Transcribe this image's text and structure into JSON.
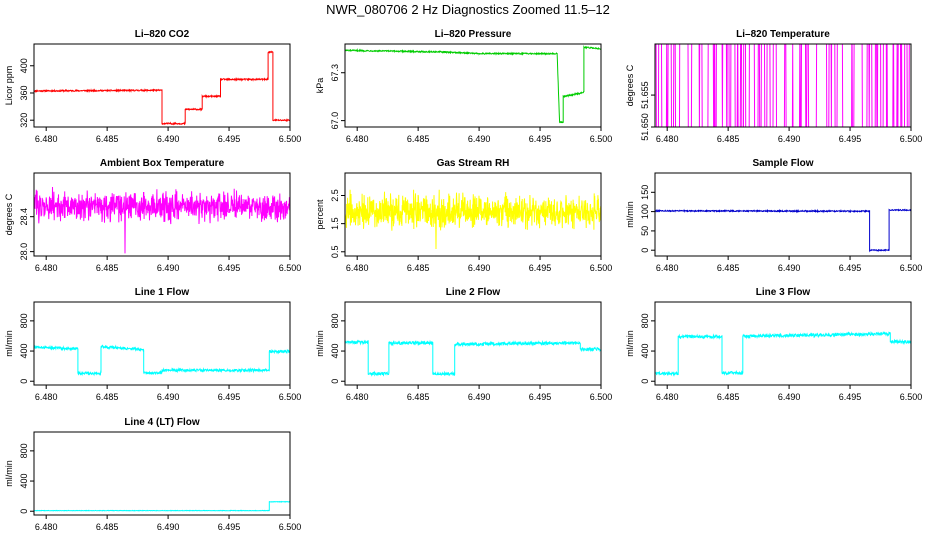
{
  "figure": {
    "title": "NWR_080706  2 Hz Diagnostics Zoomed 11.5–12"
  },
  "chart_data": [
    {
      "type": "line",
      "title": "Li–820 CO2",
      "ylabel": "Licor ppm",
      "color": "#ff0000",
      "xlim": [
        6.479,
        6.5
      ],
      "ylim": [
        310,
        432
      ],
      "xticks": [
        "6.480",
        "6.485",
        "6.490",
        "6.495",
        "6.500"
      ],
      "yticks": [
        "320",
        "360",
        "400"
      ],
      "series": [
        {
          "name": "CO2",
          "x": [
            6.479,
            6.4895,
            6.4895,
            6.4914,
            6.4914,
            6.4928,
            6.4928,
            6.4943,
            6.4943,
            6.4982,
            6.4982,
            6.4986,
            6.4986,
            6.5
          ],
          "y": [
            363,
            364,
            315,
            315,
            336,
            336,
            355,
            355,
            380,
            380,
            420,
            420,
            320,
            320
          ],
          "noise": 1
        }
      ]
    },
    {
      "type": "line",
      "title": "Li–820 Pressure",
      "ylabel": "kPa",
      "color": "#00cc00",
      "xlim": [
        6.479,
        6.5
      ],
      "ylim": [
        66.96,
        67.48
      ],
      "xticks": [
        "6.480",
        "6.485",
        "6.490",
        "6.495",
        "6.500"
      ],
      "yticks": [
        "67.0",
        "67.3"
      ],
      "series": [
        {
          "name": "pressure",
          "x": [
            6.479,
            6.487,
            6.49,
            6.4955,
            6.4964,
            6.4966,
            6.4969,
            6.4969,
            6.4982,
            6.4986,
            6.4986,
            6.5
          ],
          "y": [
            67.44,
            67.43,
            67.42,
            67.42,
            67.42,
            66.99,
            66.99,
            67.15,
            67.17,
            67.18,
            67.46,
            67.45
          ],
          "noise": 0.004
        }
      ]
    },
    {
      "type": "line",
      "title": "Li–820 Temperature",
      "ylabel": "degrees C",
      "color": "#ff00ff",
      "xlim": [
        6.479,
        6.5
      ],
      "ylim": [
        51.65,
        51.663
      ],
      "xticks": [
        "6.480",
        "6.485",
        "6.490",
        "6.495",
        "6.500"
      ],
      "yticks": [
        "51.650",
        "51.655"
      ],
      "series": [
        {
          "name": "temperature",
          "pattern": "quantized-toggle",
          "levels": [
            51.65,
            51.663
          ],
          "x_range": [
            6.479,
            6.5
          ]
        }
      ]
    },
    {
      "type": "line",
      "title": "Ambient Box Temperature",
      "ylabel": "degrees C",
      "color": "#ff00ff",
      "xlim": [
        6.479,
        6.5
      ],
      "ylim": [
        27.95,
        28.9
      ],
      "xticks": [
        "6.480",
        "6.485",
        "6.490",
        "6.495",
        "6.500"
      ],
      "yticks": [
        "28.0",
        "28.4"
      ],
      "series": [
        {
          "name": "ambient",
          "pattern": "noise",
          "mean": 28.52,
          "spread": 0.1,
          "outlier": 27.98,
          "x_range": [
            6.479,
            6.5
          ]
        }
      ]
    },
    {
      "type": "line",
      "title": "Gas Stream RH",
      "ylabel": "percent",
      "color": "#ffff00",
      "xlim": [
        6.479,
        6.5
      ],
      "ylim": [
        0.35,
        3.3
      ],
      "xticks": [
        "6.480",
        "6.485",
        "6.490",
        "6.495",
        "6.500"
      ],
      "yticks": [
        "0.5",
        "1.5",
        "2.5"
      ],
      "series": [
        {
          "name": "rh",
          "pattern": "noise",
          "mean": 1.95,
          "spread": 0.35,
          "outlier": 0.6,
          "x_range": [
            6.479,
            6.5
          ]
        }
      ]
    },
    {
      "type": "line",
      "title": "Sample Flow",
      "ylabel": "ml/min",
      "color": "#0000cc",
      "xlim": [
        6.479,
        6.5
      ],
      "ylim": [
        -15,
        200
      ],
      "xticks": [
        "6.480",
        "6.485",
        "6.490",
        "6.495",
        "6.500"
      ],
      "yticks": [
        "0",
        "50",
        "100",
        "150"
      ],
      "series": [
        {
          "name": "sample",
          "x": [
            6.479,
            6.4966,
            6.4966,
            6.4982,
            6.4982,
            6.5
          ],
          "y": [
            102,
            101,
            0,
            0,
            104,
            104
          ],
          "noise": 1.5
        }
      ]
    },
    {
      "type": "line",
      "title": "Line 1 Flow",
      "ylabel": "ml/min",
      "color": "#00ffff",
      "xlim": [
        6.479,
        6.5
      ],
      "ylim": [
        -50,
        1050
      ],
      "xticks": [
        "6.480",
        "6.485",
        "6.490",
        "6.495",
        "6.500"
      ],
      "yticks": [
        "0",
        "400",
        "800"
      ],
      "series": [
        {
          "name": "line1",
          "x": [
            6.479,
            6.4826,
            6.4826,
            6.4845,
            6.4845,
            6.488,
            6.488,
            6.4895,
            6.4895,
            6.4983,
            6.4983,
            6.5
          ],
          "y": [
            450,
            430,
            105,
            105,
            460,
            420,
            110,
            110,
            145,
            145,
            395,
            395
          ],
          "noise": 18
        }
      ]
    },
    {
      "type": "line",
      "title": "Line 2 Flow",
      "ylabel": "ml/min",
      "color": "#00ffff",
      "xlim": [
        6.479,
        6.5
      ],
      "ylim": [
        -50,
        1050
      ],
      "xticks": [
        "6.480",
        "6.485",
        "6.490",
        "6.495",
        "6.500"
      ],
      "yticks": [
        "0",
        "400",
        "800"
      ],
      "series": [
        {
          "name": "line2",
          "x": [
            6.479,
            6.4809,
            6.4809,
            6.4826,
            6.4826,
            6.4862,
            6.4862,
            6.488,
            6.488,
            6.4983,
            6.4983,
            6.5
          ],
          "y": [
            520,
            515,
            100,
            100,
            505,
            510,
            100,
            100,
            490,
            510,
            425,
            425
          ],
          "noise": 20
        }
      ]
    },
    {
      "type": "line",
      "title": "Line 3 Flow",
      "ylabel": "ml/min",
      "color": "#00ffff",
      "xlim": [
        6.479,
        6.5
      ],
      "ylim": [
        -50,
        1050
      ],
      "xticks": [
        "6.480",
        "6.485",
        "6.490",
        "6.495",
        "6.500"
      ],
      "yticks": [
        "0",
        "400",
        "800"
      ],
      "series": [
        {
          "name": "line3",
          "x": [
            6.479,
            6.4809,
            6.4809,
            6.4845,
            6.4845,
            6.4862,
            6.4862,
            6.4983,
            6.4983,
            6.5
          ],
          "y": [
            100,
            100,
            590,
            590,
            110,
            110,
            595,
            630,
            525,
            520
          ],
          "noise": 20
        }
      ]
    },
    {
      "type": "line",
      "title": "Line 4 (LT) Flow",
      "ylabel": "ml/min",
      "color": "#00ffff",
      "xlim": [
        6.479,
        6.5
      ],
      "ylim": [
        -50,
        1050
      ],
      "xticks": [
        "6.480",
        "6.485",
        "6.490",
        "6.495",
        "6.500"
      ],
      "yticks": [
        "0",
        "400",
        "800"
      ],
      "series": [
        {
          "name": "line4",
          "x": [
            6.479,
            6.4983,
            6.4983,
            6.5
          ],
          "y": [
            8,
            8,
            125,
            125
          ],
          "noise": 3
        }
      ]
    }
  ]
}
